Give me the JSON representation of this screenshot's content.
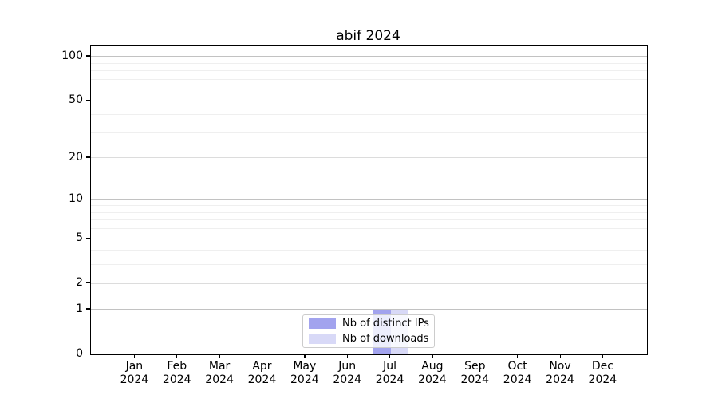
{
  "chart_data": {
    "type": "bar",
    "title": "abif 2024",
    "categories": [
      "Jan",
      "Feb",
      "Mar",
      "Apr",
      "May",
      "Jun",
      "Jul",
      "Aug",
      "Sep",
      "Oct",
      "Nov",
      "Dec"
    ],
    "category_year": "2024",
    "series": [
      {
        "name": "Nb of distinct IPs",
        "color": "#a2a3ee",
        "values": [
          0,
          0,
          0,
          0,
          0,
          0,
          1,
          0,
          0,
          0,
          0,
          0
        ]
      },
      {
        "name": "Nb of downloads",
        "color": "#d8d9f7",
        "values": [
          0,
          0,
          0,
          0,
          0,
          0,
          1,
          0,
          0,
          0,
          0,
          0
        ]
      }
    ],
    "yscale": "log1p",
    "yticks": [
      0,
      1,
      2,
      5,
      10,
      20,
      50,
      100
    ],
    "yticks_minor": [
      3,
      4,
      6,
      7,
      8,
      9,
      30,
      40,
      60,
      70,
      80,
      90
    ],
    "ylim": [
      0,
      118
    ],
    "xlabel": "",
    "ylabel": "",
    "grid": true,
    "legend_position": "lower center",
    "colors": {
      "grid_decade": "#c2c2c2",
      "grid_major": "#dcdcdc",
      "grid_minor": "#efefef",
      "axis": "#000000",
      "background": "#ffffff"
    }
  }
}
